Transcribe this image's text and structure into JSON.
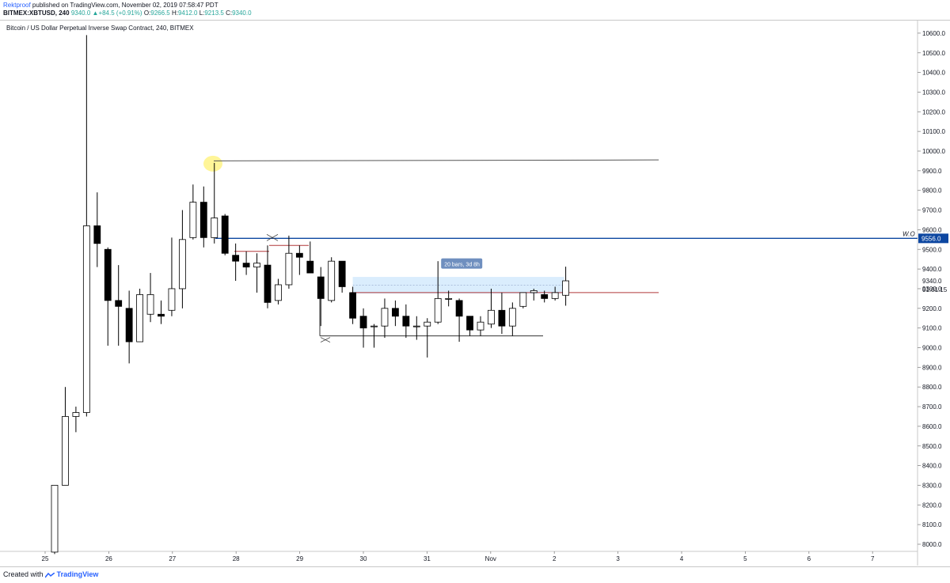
{
  "header": {
    "author": "Rektproof",
    "published_text": "published on TradingView.com, November 02, 2019 07:58:47 PDT",
    "symbol": "BITMEX:XBTUSD, 240",
    "last": "9340.0",
    "change": "+84.5 (+0.91%)",
    "open_label": "O:",
    "open": "9266.5",
    "high_label": "H:",
    "high": "9412.0",
    "low_label": "L:",
    "low": "9213.5",
    "close_label": "C:",
    "close": "9340.0",
    "up_arrow": "▲"
  },
  "footer": {
    "created_with": "Created with",
    "brand": "TradingView"
  },
  "colors": {
    "up_fill": "#ffffff",
    "down_fill": "#000000",
    "wick": "#000000",
    "wo_line": "#0d47a1",
    "red_line": "#b2393a",
    "highlight": "#fff176",
    "range_box": "#bbdefb",
    "tag_bg": "#6f8fbf"
  },
  "chart_data": {
    "type": "candlestick",
    "title": "Bitcoin / US Dollar Perpetual Inverse Swap Contract, 240, BITMEX",
    "ylim": [
      7950,
      10660
    ],
    "x_ticks": [
      "25",
      "26",
      "27",
      "28",
      "29",
      "30",
      "31",
      "Nov",
      "2",
      "3",
      "4",
      "5",
      "6",
      "7"
    ],
    "y_ticks": [
      8000,
      8100,
      8200,
      8300,
      8400,
      8500,
      8600,
      8700,
      8800,
      8900,
      9000,
      9100,
      9200,
      9300,
      9400,
      9500,
      9600,
      9700,
      9800,
      9900,
      10000,
      10100,
      10200,
      10300,
      10400,
      10500,
      10600
    ],
    "candles": [
      {
        "o": 7960,
        "h": 8300,
        "l": 7950,
        "c": 8300
      },
      {
        "o": 8300,
        "h": 8800,
        "l": 8300,
        "c": 8650
      },
      {
        "o": 8650,
        "h": 8700,
        "l": 8570,
        "c": 8670
      },
      {
        "o": 8670,
        "h": 10590,
        "l": 8650,
        "c": 9620
      },
      {
        "o": 9620,
        "h": 9790,
        "l": 9410,
        "c": 9530
      },
      {
        "o": 9500,
        "h": 9510,
        "l": 9010,
        "c": 9240
      },
      {
        "o": 9240,
        "h": 9420,
        "l": 9010,
        "c": 9210
      },
      {
        "o": 9200,
        "h": 9290,
        "l": 8920,
        "c": 9030
      },
      {
        "o": 9030,
        "h": 9300,
        "l": 9030,
        "c": 9270
      },
      {
        "o": 9170,
        "h": 9380,
        "l": 9130,
        "c": 9270
      },
      {
        "o": 9170,
        "h": 9240,
        "l": 9120,
        "c": 9160
      },
      {
        "o": 9190,
        "h": 9560,
        "l": 9160,
        "c": 9300
      },
      {
        "o": 9300,
        "h": 9700,
        "l": 9200,
        "c": 9550
      },
      {
        "o": 9560,
        "h": 9830,
        "l": 9550,
        "c": 9740
      },
      {
        "o": 9740,
        "h": 9820,
        "l": 9510,
        "c": 9560
      },
      {
        "o": 9560,
        "h": 9940,
        "l": 9530,
        "c": 9660
      },
      {
        "o": 9670,
        "h": 9680,
        "l": 9470,
        "c": 9480
      },
      {
        "o": 9470,
        "h": 9530,
        "l": 9340,
        "c": 9440
      },
      {
        "o": 9430,
        "h": 9490,
        "l": 9370,
        "c": 9410
      },
      {
        "o": 9410,
        "h": 9480,
        "l": 9280,
        "c": 9430
      },
      {
        "o": 9420,
        "h": 9520,
        "l": 9200,
        "c": 9230
      },
      {
        "o": 9240,
        "h": 9350,
        "l": 9220,
        "c": 9320
      },
      {
        "o": 9320,
        "h": 9570,
        "l": 9300,
        "c": 9480
      },
      {
        "o": 9480,
        "h": 9520,
        "l": 9370,
        "c": 9460
      },
      {
        "o": 9440,
        "h": 9540,
        "l": 9380,
        "c": 9380
      },
      {
        "o": 9360,
        "h": 9410,
        "l": 9110,
        "c": 9250
      },
      {
        "o": 9240,
        "h": 9460,
        "l": 9230,
        "c": 9440
      },
      {
        "o": 9440,
        "h": 9440,
        "l": 9280,
        "c": 9310
      },
      {
        "o": 9280,
        "h": 9310,
        "l": 9120,
        "c": 9150
      },
      {
        "o": 9160,
        "h": 9200,
        "l": 9000,
        "c": 9100
      },
      {
        "o": 9110,
        "h": 9120,
        "l": 9000,
        "c": 9110
      },
      {
        "o": 9110,
        "h": 9250,
        "l": 9050,
        "c": 9200
      },
      {
        "o": 9200,
        "h": 9240,
        "l": 9110,
        "c": 9160
      },
      {
        "o": 9160,
        "h": 9220,
        "l": 9050,
        "c": 9110
      },
      {
        "o": 9110,
        "h": 9160,
        "l": 9040,
        "c": 9110
      },
      {
        "o": 9110,
        "h": 9150,
        "l": 8950,
        "c": 9130
      },
      {
        "o": 9130,
        "h": 9440,
        "l": 9120,
        "c": 9250
      },
      {
        "o": 9250,
        "h": 9290,
        "l": 9210,
        "c": 9250
      },
      {
        "o": 9240,
        "h": 9250,
        "l": 9030,
        "c": 9160
      },
      {
        "o": 9160,
        "h": 9160,
        "l": 9060,
        "c": 9090
      },
      {
        "o": 9090,
        "h": 9160,
        "l": 9060,
        "c": 9130
      },
      {
        "o": 9120,
        "h": 9300,
        "l": 9100,
        "c": 9190
      },
      {
        "o": 9190,
        "h": 9280,
        "l": 9070,
        "c": 9110
      },
      {
        "o": 9110,
        "h": 9230,
        "l": 9060,
        "c": 9200
      },
      {
        "o": 9210,
        "h": 9280,
        "l": 9200,
        "c": 9280
      },
      {
        "o": 9280,
        "h": 9300,
        "l": 9240,
        "c": 9290
      },
      {
        "o": 9270,
        "h": 9290,
        "l": 9230,
        "c": 9250
      },
      {
        "o": 9250,
        "h": 9310,
        "l": 9240,
        "c": 9280
      },
      {
        "o": 9266.5,
        "h": 9412,
        "l": 9213.5,
        "c": 9340
      }
    ],
    "annotations": {
      "wo_label": "W.O",
      "wo_price": 9556.0,
      "wo_price_label": "9556.0",
      "last_price_label": "9340.0",
      "countdown": "01:01:15",
      "measure_label": "20 bars, 3d 8h",
      "high_ray_price": 9950,
      "upper_red_price": 9520,
      "left_red_price": 9490,
      "right_red_price": 9280,
      "range_low_price": 9060,
      "range_box_top": 9360,
      "range_box_bottom": 9275
    }
  }
}
